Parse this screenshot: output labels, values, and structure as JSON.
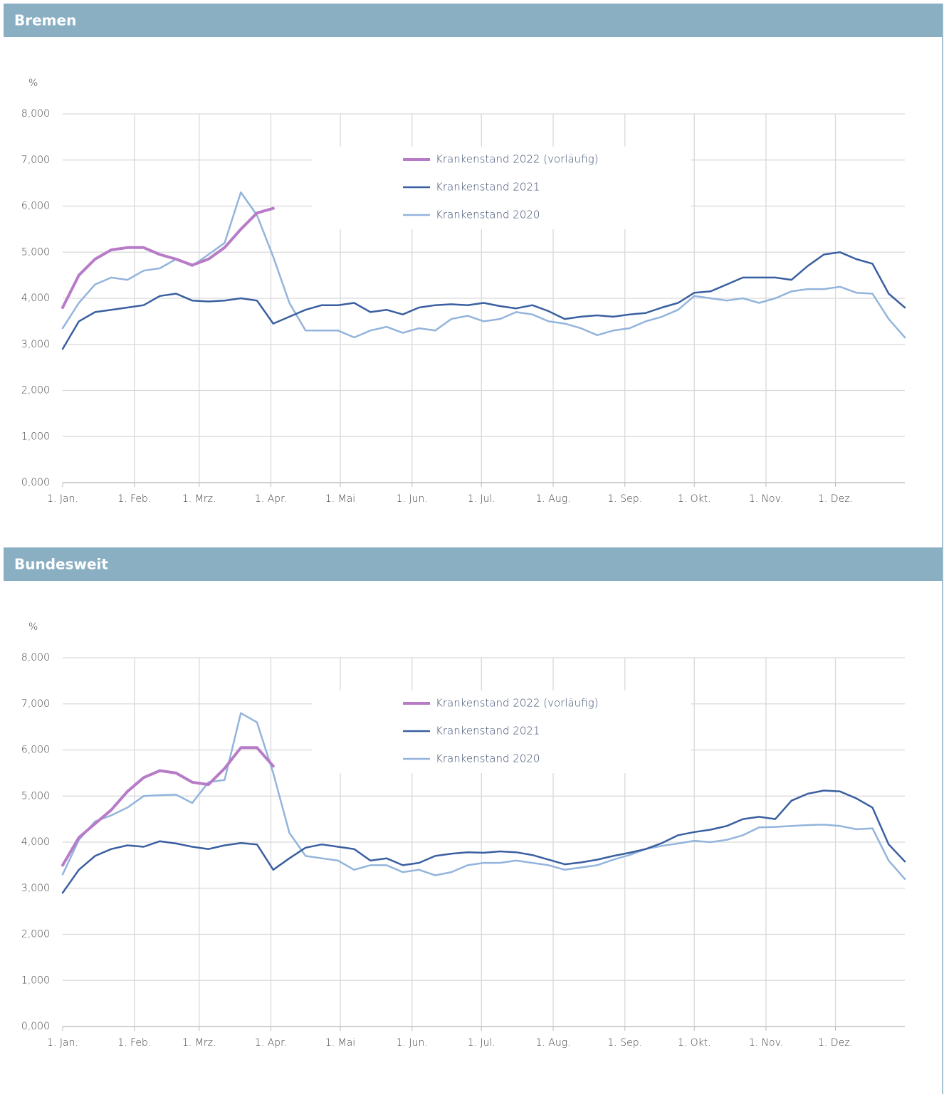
{
  "chart_data": [
    {
      "type": "line",
      "title": "Bremen",
      "y_label": "%",
      "grid": true,
      "xlim": [
        1,
        365
      ],
      "ylim": [
        0,
        8
      ],
      "xticks": [
        {
          "value": 1,
          "label": "1. Jan."
        },
        {
          "value": 32,
          "label": "1. Feb."
        },
        {
          "value": 60,
          "label": "1. Mrz."
        },
        {
          "value": 91,
          "label": "1. Apr."
        },
        {
          "value": 121,
          "label": "1. Mai"
        },
        {
          "value": 152,
          "label": "1. Jun."
        },
        {
          "value": 182,
          "label": "1. Jul."
        },
        {
          "value": 213,
          "label": "1. Aug."
        },
        {
          "value": 244,
          "label": "1. Sep."
        },
        {
          "value": 274,
          "label": "1. Okt."
        },
        {
          "value": 305,
          "label": "1. Nov."
        },
        {
          "value": 335,
          "label": "1. Dez."
        }
      ],
      "yticks": [
        {
          "value": 0,
          "label": "0,000"
        },
        {
          "value": 1,
          "label": "1,000"
        },
        {
          "value": 2,
          "label": "2,000"
        },
        {
          "value": 3,
          "label": "3,000"
        },
        {
          "value": 4,
          "label": "4,000"
        },
        {
          "value": 5,
          "label": "5,000"
        },
        {
          "value": 6,
          "label": "6,000"
        },
        {
          "value": 7,
          "label": "7,000"
        },
        {
          "value": 8,
          "label": "8,000"
        }
      ],
      "x": [
        1,
        8,
        15,
        22,
        29,
        36,
        43,
        50,
        57,
        64,
        71,
        78,
        85,
        92,
        99,
        106,
        113,
        120,
        127,
        134,
        141,
        148,
        155,
        162,
        169,
        176,
        183,
        190,
        197,
        204,
        211,
        218,
        225,
        232,
        239,
        246,
        253,
        260,
        267,
        274,
        281,
        288,
        295,
        302,
        309,
        316,
        323,
        330,
        337,
        344,
        351,
        358,
        365
      ],
      "series": [
        {
          "name": "Krankenstand 2022 (vorläufig)",
          "color": "#b77bc7",
          "line_width": 4,
          "values": [
            3.8,
            4.5,
            4.85,
            5.05,
            5.1,
            5.1,
            4.95,
            4.85,
            4.72,
            4.85,
            5.1,
            5.5,
            5.85,
            5.95,
            null,
            null,
            null,
            null,
            null,
            null,
            null,
            null,
            null,
            null,
            null,
            null,
            null,
            null,
            null,
            null,
            null,
            null,
            null,
            null,
            null,
            null,
            null,
            null,
            null,
            null,
            null,
            null,
            null,
            null,
            null,
            null,
            null,
            null,
            null,
            null,
            null,
            null,
            null
          ]
        },
        {
          "name": "Krankenstand 2021",
          "color": "#3a5fa0",
          "line_width": 2.5,
          "values": [
            2.9,
            3.5,
            3.7,
            3.75,
            3.8,
            3.85,
            4.05,
            4.1,
            3.95,
            3.93,
            3.95,
            4.0,
            3.95,
            3.45,
            3.6,
            3.75,
            3.85,
            3.85,
            3.9,
            3.7,
            3.75,
            3.65,
            3.8,
            3.85,
            3.87,
            3.85,
            3.9,
            3.83,
            3.78,
            3.85,
            3.72,
            3.55,
            3.6,
            3.63,
            3.6,
            3.65,
            3.68,
            3.8,
            3.9,
            4.12,
            4.15,
            4.3,
            4.45,
            4.45,
            4.45,
            4.4,
            4.7,
            4.95,
            5.0,
            4.85,
            4.75,
            4.1,
            3.8
          ]
        },
        {
          "name": "Krankenstand 2020",
          "color": "#93b4dc",
          "line_width": 2.5,
          "values": [
            3.35,
            3.9,
            4.3,
            4.45,
            4.4,
            4.6,
            4.65,
            4.85,
            4.7,
            4.95,
            5.2,
            6.3,
            5.8,
            4.9,
            3.9,
            3.3,
            3.3,
            3.3,
            3.15,
            3.3,
            3.38,
            3.25,
            3.35,
            3.3,
            3.55,
            3.62,
            3.5,
            3.55,
            3.7,
            3.65,
            3.5,
            3.45,
            3.35,
            3.2,
            3.3,
            3.35,
            3.5,
            3.6,
            3.75,
            4.05,
            4.0,
            3.95,
            4.0,
            3.9,
            4.0,
            4.15,
            4.2,
            4.2,
            4.25,
            4.12,
            4.1,
            3.55,
            3.15
          ]
        }
      ]
    },
    {
      "type": "line",
      "title": "Bundesweit",
      "y_label": "%",
      "grid": true,
      "xlim": [
        1,
        365
      ],
      "ylim": [
        0,
        8
      ],
      "xticks": [
        {
          "value": 1,
          "label": "1. Jan."
        },
        {
          "value": 32,
          "label": "1. Feb."
        },
        {
          "value": 60,
          "label": "1. Mrz."
        },
        {
          "value": 91,
          "label": "1. Apr."
        },
        {
          "value": 121,
          "label": "1. Mai"
        },
        {
          "value": 152,
          "label": "1. Jun."
        },
        {
          "value": 182,
          "label": "1. Jul."
        },
        {
          "value": 213,
          "label": "1. Aug."
        },
        {
          "value": 244,
          "label": "1. Sep."
        },
        {
          "value": 274,
          "label": "1. Okt."
        },
        {
          "value": 305,
          "label": "1. Nov."
        },
        {
          "value": 335,
          "label": "1. Dez."
        }
      ],
      "yticks": [
        {
          "value": 0,
          "label": "0,000"
        },
        {
          "value": 1,
          "label": "1,000"
        },
        {
          "value": 2,
          "label": "2,000"
        },
        {
          "value": 3,
          "label": "3,000"
        },
        {
          "value": 4,
          "label": "4,000"
        },
        {
          "value": 5,
          "label": "5,000"
        },
        {
          "value": 6,
          "label": "6,000"
        },
        {
          "value": 7,
          "label": "7,000"
        },
        {
          "value": 8,
          "label": "8,000"
        }
      ],
      "x": [
        1,
        8,
        15,
        22,
        29,
        36,
        43,
        50,
        57,
        64,
        71,
        78,
        85,
        92,
        99,
        106,
        113,
        120,
        127,
        134,
        141,
        148,
        155,
        162,
        169,
        176,
        183,
        190,
        197,
        204,
        211,
        218,
        225,
        232,
        239,
        246,
        253,
        260,
        267,
        274,
        281,
        288,
        295,
        302,
        309,
        316,
        323,
        330,
        337,
        344,
        351,
        358,
        365
      ],
      "series": [
        {
          "name": "Krankenstand 2022 (vorläufig)",
          "color": "#b77bc7",
          "line_width": 4,
          "values": [
            3.5,
            4.1,
            4.4,
            4.7,
            5.1,
            5.4,
            5.55,
            5.5,
            5.3,
            5.25,
            5.6,
            6.05,
            6.05,
            5.65,
            null,
            null,
            null,
            null,
            null,
            null,
            null,
            null,
            null,
            null,
            null,
            null,
            null,
            null,
            null,
            null,
            null,
            null,
            null,
            null,
            null,
            null,
            null,
            null,
            null,
            null,
            null,
            null,
            null,
            null,
            null,
            null,
            null,
            null,
            null,
            null,
            null,
            null,
            null
          ]
        },
        {
          "name": "Krankenstand 2021",
          "color": "#3a5fa0",
          "line_width": 2.5,
          "values": [
            2.9,
            3.4,
            3.7,
            3.85,
            3.93,
            3.9,
            4.02,
            3.97,
            3.9,
            3.85,
            3.93,
            3.98,
            3.95,
            3.4,
            3.65,
            3.88,
            3.95,
            3.9,
            3.85,
            3.6,
            3.65,
            3.5,
            3.55,
            3.7,
            3.75,
            3.78,
            3.77,
            3.8,
            3.78,
            3.72,
            3.62,
            3.52,
            3.56,
            3.62,
            3.7,
            3.77,
            3.85,
            3.98,
            4.15,
            4.22,
            4.27,
            4.35,
            4.5,
            4.55,
            4.5,
            4.9,
            5.05,
            5.12,
            5.1,
            4.95,
            4.75,
            3.95,
            3.58
          ]
        },
        {
          "name": "Krankenstand 2020",
          "color": "#93b4dc",
          "line_width": 2.5,
          "values": [
            3.3,
            4.05,
            4.45,
            4.58,
            4.75,
            5.0,
            5.02,
            5.03,
            4.85,
            5.3,
            5.35,
            6.8,
            6.6,
            5.5,
            4.2,
            3.7,
            3.65,
            3.6,
            3.4,
            3.5,
            3.5,
            3.35,
            3.4,
            3.28,
            3.35,
            3.5,
            3.55,
            3.55,
            3.6,
            3.55,
            3.5,
            3.4,
            3.45,
            3.5,
            3.62,
            3.72,
            3.85,
            3.92,
            3.97,
            4.03,
            4.0,
            4.05,
            4.15,
            4.32,
            4.33,
            4.35,
            4.37,
            4.38,
            4.35,
            4.28,
            4.3,
            3.6,
            3.2
          ]
        }
      ]
    }
  ]
}
